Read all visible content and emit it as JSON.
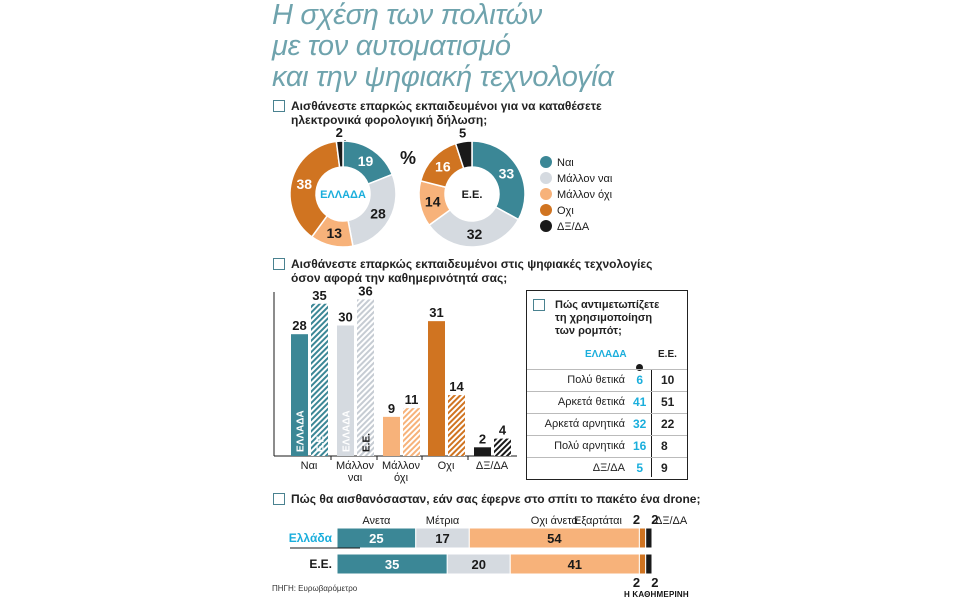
{
  "title_lines": [
    "Η σχέση των πολιτών",
    "με τον αυτοματισμό",
    "και την ψηφιακή τεχνολογία"
  ],
  "colors": {
    "nai": "#3b8796",
    "mallon_nai": "#d5dae0",
    "mallon_oxi": "#f7b27a",
    "oxi": "#d07421",
    "dk": "#1a1a1a",
    "title": "#6fa3ad",
    "gr_label": "#1aaedc"
  },
  "icons": {
    "question_box": "square-outline-icon",
    "pointer": "dot-pointer-icon"
  },
  "q1": {
    "lines": [
      "Αισθάνεστε επαρκώς εκπαιδευμένοι για να καταθέσετε",
      "ηλεκτρονικά φορολογική δήλωση;"
    ],
    "percent_sign": "%",
    "legend": [
      "Ναι",
      "Μάλλον ναι",
      "Μάλλον όχι",
      "Οχι",
      "ΔΞ/ΔΑ"
    ]
  },
  "q2": {
    "lines": [
      "Αισθάνεστε επαρκώς εκπαιδευμένοι στις ψηφιακές τεχνολογίες",
      "όσον αφορά την καθημερινότητά σας;"
    ]
  },
  "robots": {
    "lines": [
      "Πώς αντιμετωπίζετε",
      "τη χρησιμοποίηση",
      "των ρομπότ;"
    ],
    "col_gr": "ΕΛΛΑΔΑ",
    "col_eu": "Ε.Ε.",
    "rows": [
      {
        "label": "Πολύ θετικά",
        "gr": "6",
        "eu": "10"
      },
      {
        "label": "Αρκετά θετικά",
        "gr": "41",
        "eu": "51"
      },
      {
        "label": "Αρκετά αρνητικά",
        "gr": "32",
        "eu": "22"
      },
      {
        "label": "Πολύ αρνητικά",
        "gr": "16",
        "eu": "8"
      },
      {
        "label": "ΔΞ/ΔΑ",
        "gr": "5",
        "eu": "9"
      }
    ]
  },
  "q3": {
    "line": "Πώς θα αισθανόσασταν, εάν σας έφερνε στο σπίτι το πακέτο ένα drone;"
  },
  "source": "ΠΗΓΗ: Ευρωβαρόμετρο",
  "brand": "Η ΚΑΘΗΜΕΡΙΝΗ",
  "chart_data": [
    {
      "type": "pie",
      "variant": "donut",
      "center_label": "ΕΛΛΑΔΑ",
      "categories": [
        "Ναι",
        "Μάλλον ναι",
        "Μάλλον όχι",
        "Οχι",
        "ΔΞ/ΔΑ"
      ],
      "values": [
        19,
        28,
        13,
        38,
        2
      ]
    },
    {
      "type": "pie",
      "variant": "donut",
      "center_label": "Ε.Ε.",
      "categories": [
        "Ναι",
        "Μάλλον ναι",
        "Μάλλον όχι",
        "Οχι",
        "ΔΞ/ΔΑ"
      ],
      "values": [
        33,
        32,
        14,
        16,
        5
      ]
    },
    {
      "type": "bar",
      "categories": [
        [
          "Ναι"
        ],
        [
          "Μάλλον",
          "ναι"
        ],
        [
          "Μάλλον",
          "όχι"
        ],
        [
          "Οχι"
        ],
        [
          "ΔΞ/ΔΑ"
        ]
      ],
      "series": [
        {
          "name": "ΕΛΛΑΔΑ",
          "values": [
            28,
            30,
            9,
            31,
            2
          ]
        },
        {
          "name": "Ε.Ε.",
          "values": [
            35,
            36,
            11,
            14,
            4
          ]
        }
      ],
      "ylim": [
        0,
        40
      ]
    },
    {
      "type": "bar",
      "orientation": "horizontal",
      "stacked": true,
      "categories": [
        "Ελλάδα",
        "Ε.Ε."
      ],
      "segments": [
        "Ανετα",
        "Μέτρια",
        "Οχι άνετα",
        "Εξαρτάται",
        "ΔΞ/ΔΑ"
      ],
      "series": [
        {
          "name": "Ανετα",
          "values": [
            25,
            35
          ]
        },
        {
          "name": "Μέτρια",
          "values": [
            17,
            20
          ]
        },
        {
          "name": "Οχι άνετα",
          "values": [
            54,
            41
          ]
        },
        {
          "name": "Εξαρτάται",
          "values": [
            2,
            2
          ]
        },
        {
          "name": "ΔΞ/ΔΑ",
          "values": [
            2,
            2
          ]
        }
      ]
    }
  ]
}
